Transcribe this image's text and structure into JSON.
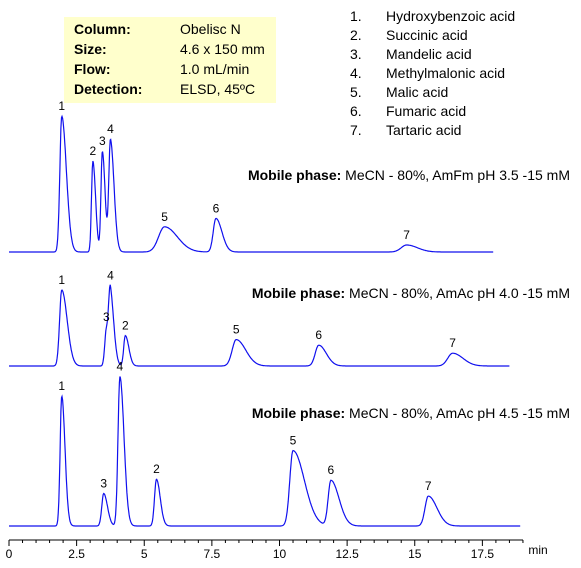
{
  "info": {
    "rows": [
      {
        "key": "Column:",
        "value": "Obelisc N"
      },
      {
        "key": "Size:",
        "value": "4.6 x 150 mm"
      },
      {
        "key": "Flow:",
        "value": "1.0 mL/min"
      },
      {
        "key": "Detection:",
        "value": "ELSD, 45ºC"
      }
    ]
  },
  "legend": {
    "items": [
      {
        "num": "1.",
        "name": "Hydroxybenzoic acid"
      },
      {
        "num": "2.",
        "name": "Succinic acid"
      },
      {
        "num": "3.",
        "name": "Mandelic acid"
      },
      {
        "num": "4.",
        "name": "Methylmalonic acid"
      },
      {
        "num": "5.",
        "name": "Malic acid"
      },
      {
        "num": "6.",
        "name": "Fumaric acid"
      },
      {
        "num": "7.",
        "name": "Tartaric acid"
      }
    ]
  },
  "chart_data": {
    "type": "line",
    "xlabel": "min",
    "xlim": [
      0,
      19
    ],
    "x_ticks": [
      0,
      2.5,
      5,
      7.5,
      10,
      12.5,
      15,
      17.5
    ],
    "x_tick_labels": [
      "0",
      "2.5",
      "5",
      "7.5",
      "10",
      "12.5",
      "15",
      "17.5"
    ],
    "line_color": "#1010ee",
    "grid": false,
    "traces": [
      {
        "mobile_phase_label": "Mobile phase:",
        "mobile_phase": "MeCN - 80%, AmFm pH 3.5 -15 mM",
        "x_end": 17.9,
        "peaks": [
          {
            "label": "1",
            "rt": 1.95,
            "height": 0.97,
            "width": 0.07,
            "tail": 0.1
          },
          {
            "label": "2",
            "rt": 3.1,
            "height": 0.65,
            "width": 0.05,
            "tail": 0.05
          },
          {
            "label": "3",
            "rt": 3.45,
            "height": 0.07,
            "width": 0.05,
            "tail": 0.05
          },
          {
            "label": "3",
            "rt": 3.45,
            "height": 0.65,
            "width": 0.05,
            "tail": 0.05,
            "hidden": true
          },
          {
            "label": "4",
            "rt": 3.75,
            "height": 0.8,
            "width": 0.06,
            "tail": 0.07
          },
          {
            "label": "5",
            "rt": 5.75,
            "height": 0.18,
            "width": 0.22,
            "tail": 0.25
          },
          {
            "label": "6",
            "rt": 7.65,
            "height": 0.24,
            "width": 0.1,
            "tail": 0.12
          },
          {
            "label": "7",
            "rt": 14.7,
            "height": 0.05,
            "width": 0.2,
            "tail": 0.2
          }
        ]
      },
      {
        "mobile_phase_label": "Mobile phase:",
        "mobile_phase": "MeCN - 80%, AmAc pH 4.0 -15 mM",
        "x_end": 18.5,
        "peaks": [
          {
            "label": "1",
            "rt": 1.95,
            "height": 0.95,
            "width": 0.08,
            "tail": 0.12
          },
          {
            "label": "3",
            "rt": 3.6,
            "height": 0.45,
            "width": 0.06,
            "tail": 0.06
          },
          {
            "label": "4",
            "rt": 3.75,
            "height": 0.8,
            "width": 0.06,
            "tail": 0.07
          },
          {
            "label": "2",
            "rt": 4.3,
            "height": 0.38,
            "width": 0.06,
            "tail": 0.07
          },
          {
            "label": "5",
            "rt": 8.4,
            "height": 0.33,
            "width": 0.15,
            "tail": 0.2
          },
          {
            "label": "6",
            "rt": 11.45,
            "height": 0.26,
            "width": 0.13,
            "tail": 0.15
          },
          {
            "label": "7",
            "rt": 16.4,
            "height": 0.16,
            "width": 0.18,
            "tail": 0.2
          }
        ]
      },
      {
        "mobile_phase_label": "Mobile phase:",
        "mobile_phase": "MeCN - 80%, AmAc pH 4.5 -15 mM",
        "x_end": 18.9,
        "peaks": [
          {
            "label": "1",
            "rt": 1.95,
            "height": 1.0,
            "width": 0.06,
            "tail": 0.06
          },
          {
            "label": "3",
            "rt": 3.5,
            "height": 0.25,
            "width": 0.07,
            "tail": 0.07
          },
          {
            "label": "4",
            "rt": 4.1,
            "height": 1.15,
            "width": 0.07,
            "tail": 0.08
          },
          {
            "label": "2",
            "rt": 5.45,
            "height": 0.36,
            "width": 0.07,
            "tail": 0.07
          },
          {
            "label": "5",
            "rt": 10.5,
            "height": 0.58,
            "width": 0.12,
            "tail": 0.3
          },
          {
            "label": "6",
            "rt": 11.9,
            "height": 0.35,
            "width": 0.1,
            "tail": 0.2
          },
          {
            "label": "7",
            "rt": 15.5,
            "height": 0.23,
            "width": 0.12,
            "tail": 0.2
          }
        ]
      }
    ]
  }
}
